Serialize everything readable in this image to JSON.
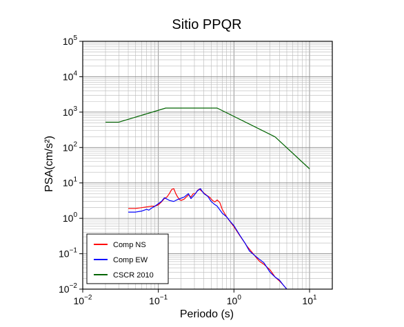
{
  "chart_data": {
    "type": "line",
    "title": "Sitio PPQR",
    "xlabel": "Periodo (s)",
    "ylabel": "PSA(cm/s²)",
    "x_scale": "log",
    "y_scale": "log",
    "xlim": [
      0.01,
      20
    ],
    "ylim": [
      0.01,
      100000
    ],
    "grid": true,
    "legend_position": "bottom-left",
    "x_ticks": [
      {
        "base": "10",
        "exp": "−2",
        "value": 0.01
      },
      {
        "base": "10",
        "exp": "−1",
        "value": 0.1
      },
      {
        "base": "10",
        "exp": "0",
        "value": 1
      },
      {
        "base": "10",
        "exp": "1",
        "value": 10
      }
    ],
    "y_ticks": [
      {
        "base": "10",
        "exp": "−2",
        "value": 0.01
      },
      {
        "base": "10",
        "exp": "−1",
        "value": 0.1
      },
      {
        "base": "10",
        "exp": "0",
        "value": 1
      },
      {
        "base": "10",
        "exp": "1",
        "value": 10
      },
      {
        "base": "10",
        "exp": "2",
        "value": 100
      },
      {
        "base": "10",
        "exp": "3",
        "value": 1000
      },
      {
        "base": "10",
        "exp": "4",
        "value": 10000
      },
      {
        "base": "10",
        "exp": "5",
        "value": 100000
      }
    ],
    "series": [
      {
        "name": "Comp NS",
        "color": "#ff0000",
        "points": [
          [
            0.04,
            1.9
          ],
          [
            0.05,
            1.9
          ],
          [
            0.06,
            2.0
          ],
          [
            0.07,
            2.1
          ],
          [
            0.08,
            2.2
          ],
          [
            0.09,
            2.2
          ],
          [
            0.1,
            2.4
          ],
          [
            0.11,
            2.9
          ],
          [
            0.12,
            3.6
          ],
          [
            0.13,
            4.0
          ],
          [
            0.14,
            5.0
          ],
          [
            0.15,
            6.5
          ],
          [
            0.16,
            6.9
          ],
          [
            0.17,
            5.0
          ],
          [
            0.18,
            4.0
          ],
          [
            0.19,
            3.4
          ],
          [
            0.2,
            3.2
          ],
          [
            0.22,
            3.5
          ],
          [
            0.25,
            4.6
          ],
          [
            0.27,
            4.0
          ],
          [
            0.29,
            5.0
          ],
          [
            0.31,
            5.0
          ],
          [
            0.33,
            6.2
          ],
          [
            0.35,
            6.7
          ],
          [
            0.37,
            6.0
          ],
          [
            0.4,
            5.2
          ],
          [
            0.44,
            4.4
          ],
          [
            0.48,
            3.9
          ],
          [
            0.52,
            3.2
          ],
          [
            0.56,
            2.9
          ],
          [
            0.6,
            3.3
          ],
          [
            0.65,
            2.8
          ],
          [
            0.7,
            1.8
          ],
          [
            0.8,
            1.1
          ],
          [
            0.9,
            0.78
          ],
          [
            1.0,
            0.58
          ],
          [
            1.2,
            0.32
          ],
          [
            1.5,
            0.16
          ],
          [
            1.8,
            0.1
          ],
          [
            2.0,
            0.075
          ],
          [
            2.2,
            0.06
          ],
          [
            2.5,
            0.05
          ],
          [
            3.0,
            0.035
          ],
          [
            3.5,
            0.022
          ],
          [
            4.0,
            0.017
          ],
          [
            4.5,
            0.013
          ],
          [
            5.0,
            0.01
          ]
        ]
      },
      {
        "name": "Comp EW",
        "color": "#0000ff",
        "points": [
          [
            0.04,
            1.5
          ],
          [
            0.05,
            1.5
          ],
          [
            0.06,
            1.6
          ],
          [
            0.07,
            1.8
          ],
          [
            0.075,
            1.7
          ],
          [
            0.08,
            1.9
          ],
          [
            0.09,
            2.2
          ],
          [
            0.1,
            2.6
          ],
          [
            0.11,
            3.0
          ],
          [
            0.12,
            3.8
          ],
          [
            0.13,
            3.5
          ],
          [
            0.14,
            3.2
          ],
          [
            0.16,
            3.0
          ],
          [
            0.18,
            3.4
          ],
          [
            0.2,
            3.7
          ],
          [
            0.22,
            4.0
          ],
          [
            0.25,
            5.0
          ],
          [
            0.27,
            3.6
          ],
          [
            0.3,
            4.6
          ],
          [
            0.33,
            6.0
          ],
          [
            0.36,
            6.9
          ],
          [
            0.4,
            5.0
          ],
          [
            0.45,
            4.2
          ],
          [
            0.5,
            3.0
          ],
          [
            0.55,
            2.5
          ],
          [
            0.6,
            2.2
          ],
          [
            0.7,
            1.4
          ],
          [
            0.8,
            1.1
          ],
          [
            0.9,
            0.8
          ],
          [
            1.0,
            0.62
          ],
          [
            1.2,
            0.33
          ],
          [
            1.4,
            0.2
          ],
          [
            1.6,
            0.12
          ],
          [
            2.0,
            0.08
          ],
          [
            2.5,
            0.055
          ],
          [
            3.0,
            0.03
          ],
          [
            3.5,
            0.022
          ],
          [
            4.0,
            0.018
          ],
          [
            4.5,
            0.013
          ],
          [
            5.0,
            0.01
          ]
        ]
      },
      {
        "name": "CSCR 2010",
        "color": "#006400",
        "points": [
          [
            0.02,
            520
          ],
          [
            0.03,
            520
          ],
          [
            0.125,
            1300
          ],
          [
            0.6,
            1300
          ],
          [
            3.5,
            200
          ],
          [
            10,
            25
          ]
        ]
      }
    ]
  }
}
